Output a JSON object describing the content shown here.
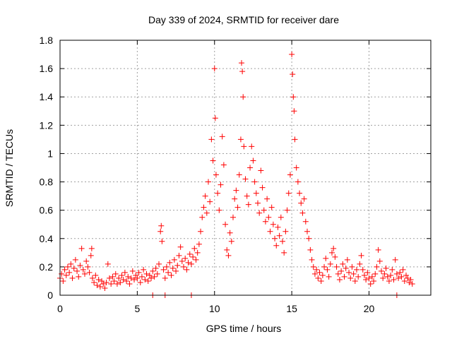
{
  "chart_data": {
    "type": "scatter",
    "title": "Day 339 of 2024, SRMTID for receiver dare",
    "xlabel": "GPS time / hours",
    "ylabel": "SRMTID / TECUs",
    "xlim": [
      0,
      24
    ],
    "ylim": [
      0,
      1.8
    ],
    "grid": true,
    "marker": "+",
    "x_ticks": [
      {
        "value": 0,
        "label": "0"
      },
      {
        "value": 5,
        "label": "5"
      },
      {
        "value": 10,
        "label": "10"
      },
      {
        "value": 15,
        "label": "15"
      },
      {
        "value": 20,
        "label": "20"
      }
    ],
    "y_ticks": [
      {
        "value": 0,
        "label": "0"
      },
      {
        "value": 0.2,
        "label": "0.2"
      },
      {
        "value": 0.4,
        "label": "0.4"
      },
      {
        "value": 0.6,
        "label": "0.6"
      },
      {
        "value": 0.8,
        "label": "0.8"
      },
      {
        "value": 1.0,
        "label": "1"
      },
      {
        "value": 1.2,
        "label": "1.2"
      },
      {
        "value": 1.4,
        "label": "1.4"
      },
      {
        "value": 1.6,
        "label": "1.6"
      },
      {
        "value": 1.8,
        "label": "1.8"
      }
    ],
    "series": [
      {
        "name": "SRMTID",
        "color": "#ff0000",
        "points": [
          [
            0.0,
            0.12
          ],
          [
            0.1,
            0.15
          ],
          [
            0.2,
            0.1
          ],
          [
            0.3,
            0.18
          ],
          [
            0.4,
            0.14
          ],
          [
            0.5,
            0.2
          ],
          [
            0.6,
            0.16
          ],
          [
            0.7,
            0.22
          ],
          [
            0.8,
            0.12
          ],
          [
            0.9,
            0.19
          ],
          [
            1.0,
            0.25
          ],
          [
            1.1,
            0.17
          ],
          [
            1.2,
            0.13
          ],
          [
            1.3,
            0.21
          ],
          [
            1.4,
            0.33
          ],
          [
            1.5,
            0.18
          ],
          [
            1.6,
            0.15
          ],
          [
            1.7,
            0.24
          ],
          [
            1.8,
            0.2
          ],
          [
            1.9,
            0.16
          ],
          [
            2.0,
            0.28
          ],
          [
            2.05,
            0.33
          ],
          [
            2.1,
            0.12
          ],
          [
            2.2,
            0.09
          ],
          [
            2.3,
            0.14
          ],
          [
            2.4,
            0.07
          ],
          [
            2.5,
            0.11
          ],
          [
            2.6,
            0.06
          ],
          [
            2.7,
            0.1
          ],
          [
            2.8,
            0.08
          ],
          [
            2.9,
            0.05
          ],
          [
            3.0,
            0.09
          ],
          [
            3.1,
            0.22
          ],
          [
            3.2,
            0.12
          ],
          [
            3.3,
            0.08
          ],
          [
            3.4,
            0.13
          ],
          [
            3.5,
            0.1
          ],
          [
            3.6,
            0.15
          ],
          [
            3.7,
            0.08
          ],
          [
            3.8,
            0.12
          ],
          [
            3.9,
            0.09
          ],
          [
            4.0,
            0.14
          ],
          [
            4.1,
            0.11
          ],
          [
            4.2,
            0.16
          ],
          [
            4.3,
            0.1
          ],
          [
            4.4,
            0.13
          ],
          [
            4.5,
            0.08
          ],
          [
            4.6,
            0.12
          ],
          [
            4.7,
            0.17
          ],
          [
            4.8,
            0.11
          ],
          [
            4.9,
            0.14
          ],
          [
            5.0,
            0.12
          ],
          [
            5.1,
            0.16
          ],
          [
            5.2,
            0.09
          ],
          [
            5.3,
            0.13
          ],
          [
            5.4,
            0.18
          ],
          [
            5.5,
            0.11
          ],
          [
            5.6,
            0.15
          ],
          [
            5.7,
            0.1
          ],
          [
            5.8,
            0.14
          ],
          [
            5.9,
            0.12
          ],
          [
            6.0,
            0.17
          ],
          [
            6.1,
            0.13
          ],
          [
            6.2,
            0.19
          ],
          [
            6.3,
            0.15
          ],
          [
            6.4,
            0.22
          ],
          [
            6.5,
            0.45
          ],
          [
            6.55,
            0.49
          ],
          [
            6.6,
            0.38
          ],
          [
            6.7,
            0.18
          ],
          [
            6.8,
            0.12
          ],
          [
            6.9,
            0.2
          ],
          [
            7.0,
            0.16
          ],
          [
            7.1,
            0.23
          ],
          [
            7.2,
            0.14
          ],
          [
            7.3,
            0.19
          ],
          [
            7.4,
            0.25
          ],
          [
            7.5,
            0.17
          ],
          [
            7.6,
            0.21
          ],
          [
            7.7,
            0.28
          ],
          [
            7.8,
            0.34
          ],
          [
            7.9,
            0.24
          ],
          [
            8.0,
            0.2
          ],
          [
            8.1,
            0.26
          ],
          [
            8.2,
            0.18
          ],
          [
            8.3,
            0.23
          ],
          [
            8.4,
            0.29
          ],
          [
            8.5,
            0.22
          ],
          [
            8.6,
            0.27
          ],
          [
            8.7,
            0.33
          ],
          [
            8.8,
            0.25
          ],
          [
            8.9,
            0.3
          ],
          [
            9.0,
            0.36
          ],
          [
            9.1,
            0.45
          ],
          [
            9.2,
            0.55
          ],
          [
            9.3,
            0.62
          ],
          [
            9.4,
            0.7
          ],
          [
            9.5,
            0.58
          ],
          [
            9.6,
            0.8
          ],
          [
            9.7,
            0.66
          ],
          [
            9.8,
            1.1
          ],
          [
            9.9,
            0.95
          ],
          [
            10.0,
            1.6
          ],
          [
            10.05,
            1.25
          ],
          [
            10.1,
            0.85
          ],
          [
            10.2,
            0.72
          ],
          [
            10.3,
            0.6
          ],
          [
            10.4,
            0.78
          ],
          [
            10.5,
            1.12
          ],
          [
            10.6,
            0.92
          ],
          [
            10.7,
            0.5
          ],
          [
            10.8,
            0.32
          ],
          [
            10.9,
            0.28
          ],
          [
            11.0,
            0.44
          ],
          [
            11.1,
            0.38
          ],
          [
            11.2,
            0.55
          ],
          [
            11.3,
            0.68
          ],
          [
            11.4,
            0.74
          ],
          [
            11.5,
            0.62
          ],
          [
            11.6,
            0.85
          ],
          [
            11.7,
            1.1
          ],
          [
            11.75,
            1.64
          ],
          [
            11.8,
            1.58
          ],
          [
            11.85,
            1.4
          ],
          [
            11.9,
            1.05
          ],
          [
            12.0,
            0.82
          ],
          [
            12.1,
            0.7
          ],
          [
            12.2,
            0.64
          ],
          [
            12.3,
            0.9
          ],
          [
            12.4,
            1.05
          ],
          [
            12.5,
            0.95
          ],
          [
            12.6,
            0.8
          ],
          [
            12.7,
            0.72
          ],
          [
            12.8,
            0.65
          ],
          [
            12.9,
            0.58
          ],
          [
            13.0,
            0.88
          ],
          [
            13.1,
            0.76
          ],
          [
            13.2,
            0.6
          ],
          [
            13.3,
            0.52
          ],
          [
            13.4,
            0.68
          ],
          [
            13.5,
            0.55
          ],
          [
            13.6,
            0.45
          ],
          [
            13.7,
            0.62
          ],
          [
            13.8,
            0.5
          ],
          [
            13.9,
            0.4
          ],
          [
            14.0,
            0.35
          ],
          [
            14.1,
            0.48
          ],
          [
            14.2,
            0.42
          ],
          [
            14.3,
            0.55
          ],
          [
            14.4,
            0.38
          ],
          [
            14.5,
            0.3
          ],
          [
            14.6,
            0.45
          ],
          [
            14.7,
            0.6
          ],
          [
            14.8,
            0.72
          ],
          [
            14.9,
            0.85
          ],
          [
            15.0,
            1.7
          ],
          [
            15.05,
            1.56
          ],
          [
            15.1,
            1.4
          ],
          [
            15.15,
            1.3
          ],
          [
            15.2,
            1.1
          ],
          [
            15.3,
            0.9
          ],
          [
            15.4,
            0.8
          ],
          [
            15.5,
            0.72
          ],
          [
            15.6,
            0.65
          ],
          [
            15.7,
            0.58
          ],
          [
            15.8,
            0.68
          ],
          [
            15.9,
            0.52
          ],
          [
            16.0,
            0.45
          ],
          [
            16.1,
            0.4
          ],
          [
            16.2,
            0.32
          ],
          [
            16.3,
            0.25
          ],
          [
            16.4,
            0.2
          ],
          [
            16.5,
            0.15
          ],
          [
            16.6,
            0.18
          ],
          [
            16.7,
            0.12
          ],
          [
            16.8,
            0.16
          ],
          [
            16.9,
            0.1
          ],
          [
            17.0,
            0.14
          ],
          [
            17.1,
            0.2
          ],
          [
            17.2,
            0.26
          ],
          [
            17.3,
            0.18
          ],
          [
            17.4,
            0.13
          ],
          [
            17.5,
            0.22
          ],
          [
            17.6,
            0.3
          ],
          [
            17.7,
            0.33
          ],
          [
            17.8,
            0.27
          ],
          [
            17.9,
            0.2
          ],
          [
            18.0,
            0.15
          ],
          [
            18.1,
            0.11
          ],
          [
            18.2,
            0.17
          ],
          [
            18.3,
            0.22
          ],
          [
            18.4,
            0.13
          ],
          [
            18.5,
            0.19
          ],
          [
            18.6,
            0.25
          ],
          [
            18.7,
            0.16
          ],
          [
            18.8,
            0.12
          ],
          [
            18.9,
            0.2
          ],
          [
            19.0,
            0.15
          ],
          [
            19.1,
            0.1
          ],
          [
            19.2,
            0.18
          ],
          [
            19.3,
            0.13
          ],
          [
            19.4,
            0.22
          ],
          [
            19.5,
            0.28
          ],
          [
            19.6,
            0.18
          ],
          [
            19.7,
            0.14
          ],
          [
            19.8,
            0.11
          ],
          [
            19.9,
            0.16
          ],
          [
            20.0,
            0.12
          ],
          [
            20.1,
            0.08
          ],
          [
            20.2,
            0.13
          ],
          [
            20.3,
            0.1
          ],
          [
            20.4,
            0.15
          ],
          [
            20.5,
            0.2
          ],
          [
            20.6,
            0.32
          ],
          [
            20.7,
            0.24
          ],
          [
            20.8,
            0.17
          ],
          [
            20.9,
            0.12
          ],
          [
            21.0,
            0.15
          ],
          [
            21.1,
            0.19
          ],
          [
            21.2,
            0.13
          ],
          [
            21.3,
            0.1
          ],
          [
            21.4,
            0.14
          ],
          [
            21.5,
            0.18
          ],
          [
            21.6,
            0.11
          ],
          [
            21.7,
            0.25
          ],
          [
            21.8,
            0.15
          ],
          [
            21.9,
            0.12
          ],
          [
            22.0,
            0.16
          ],
          [
            22.1,
            0.13
          ],
          [
            22.2,
            0.18
          ],
          [
            22.3,
            0.1
          ],
          [
            22.4,
            0.14
          ],
          [
            22.5,
            0.12
          ],
          [
            22.6,
            0.09
          ],
          [
            22.7,
            0.11
          ],
          [
            22.8,
            0.08
          ],
          [
            8.5,
            0.0
          ],
          [
            21.8,
            0.0
          ],
          [
            6.0,
            0.0
          ],
          [
            6.8,
            0.0
          ]
        ]
      }
    ]
  }
}
